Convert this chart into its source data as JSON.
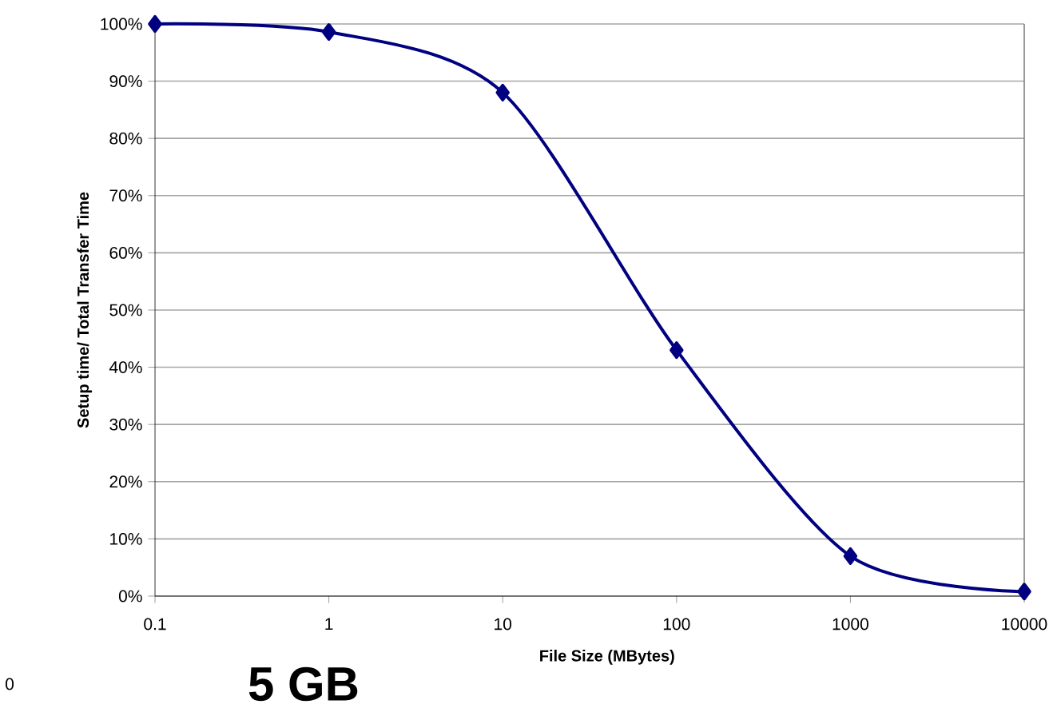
{
  "chart_data": {
    "type": "line",
    "xlabel": "File Size (MBytes)",
    "ylabel": "Setup time/ Total Transfer Time",
    "x": [
      0.1,
      1,
      10,
      100,
      1000,
      10000
    ],
    "series": [
      {
        "color": "#000080",
        "values": [
          100,
          98.6,
          88,
          43,
          7,
          0.8
        ]
      }
    ],
    "log": "x",
    "xlim": [
      0.1,
      10000
    ],
    "xticks": [
      0.1,
      1,
      10,
      100,
      1000,
      10000
    ],
    "ylim": [
      0,
      100
    ],
    "yticks": [
      {
        "value": 0,
        "label": "0%"
      },
      {
        "value": 10,
        "label": "10%"
      },
      {
        "value": 20,
        "label": "20%"
      },
      {
        "value": 30,
        "label": "30%"
      },
      {
        "value": 40,
        "label": "40%"
      },
      {
        "value": 50,
        "label": "50%"
      },
      {
        "value": 60,
        "label": "60%"
      },
      {
        "value": 70,
        "label": "70%"
      },
      {
        "value": 80,
        "label": "80%"
      },
      {
        "value": 90,
        "label": "90%"
      },
      {
        "value": 100,
        "label": "100%"
      }
    ],
    "grid": "y",
    "marker": "diamond",
    "line_style": "solid",
    "annotations": [
      "5 GB",
      "0"
    ]
  }
}
